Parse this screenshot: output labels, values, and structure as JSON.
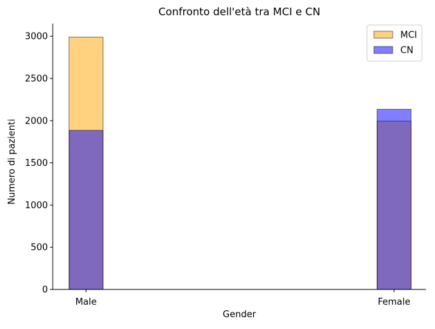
{
  "chart_data": {
    "type": "bar",
    "title": "Confronto dell'età tra MCI e CN",
    "xlabel": "Gender",
    "ylabel": "Numero di pazienti",
    "categories": [
      "Male",
      "Female"
    ],
    "ylim": [
      0,
      3150
    ],
    "yticks": [
      0,
      500,
      1000,
      1500,
      2000,
      2500,
      3000
    ],
    "grid": false,
    "legend_position": "top-right",
    "series": [
      {
        "name": "MCI",
        "values": [
          2990,
          1995
        ],
        "color": "#ffa500",
        "alpha": 0.5
      },
      {
        "name": "CN",
        "values": [
          1885,
          2135
        ],
        "color": "#0000ff",
        "alpha": 0.5
      }
    ]
  }
}
